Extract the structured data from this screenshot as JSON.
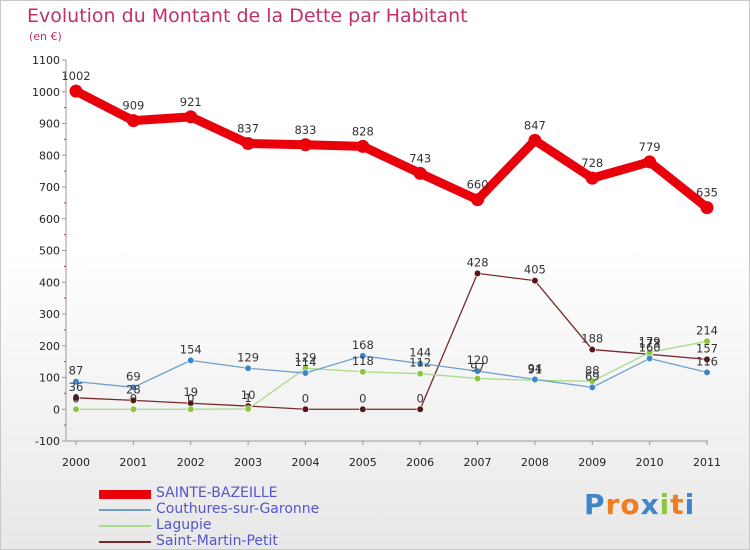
{
  "chart_data": {
    "type": "line",
    "title": "Evolution du Montant de la Dette par Habitant",
    "subtitle": "(en €)",
    "x": [
      "2000",
      "2001",
      "2002",
      "2003",
      "2004",
      "2005",
      "2006",
      "2007",
      "2008",
      "2009",
      "2010",
      "2011"
    ],
    "yticks": [
      "-100",
      "0",
      "100",
      "200",
      "300",
      "400",
      "500",
      "600",
      "700",
      "800",
      "900",
      "1000",
      "1100"
    ],
    "ylim": [
      -100,
      1100
    ],
    "grid": false,
    "legend_position": "bottom-left",
    "series": [
      {
        "name": "SAINTE-BAZEILLE",
        "color": "#e8000b",
        "values": [
          1002,
          909,
          921,
          837,
          833,
          828,
          743,
          660,
          847,
          728,
          779,
          635
        ],
        "labels": [
          "1002",
          "909",
          "921",
          "837",
          "833",
          "828",
          "743",
          "660",
          "847",
          "728",
          "779",
          "635"
        ]
      },
      {
        "name": "Couthures-sur-Garonne",
        "color": "#6fa0cc",
        "values": [
          87,
          69,
          154,
          129,
          114,
          168,
          144,
          120,
          94,
          69,
          160,
          116
        ],
        "labels": [
          "87",
          "69",
          "154",
          "129",
          "114",
          "168",
          "144",
          "120",
          "94",
          "69",
          "160",
          "116"
        ]
      },
      {
        "name": "Lagupie",
        "color": "#a8dc8a",
        "values": [
          0,
          0,
          0,
          1,
          129,
          118,
          112,
          97,
          91,
          88,
          179,
          214
        ],
        "labels": [
          "0",
          "0",
          "0",
          "1",
          "129",
          "118",
          "112",
          "97",
          "91",
          "88",
          "179",
          "214"
        ]
      },
      {
        "name": "Saint-Martin-Petit",
        "color": "#7a2a2a",
        "values": [
          36,
          28,
          19,
          10,
          0,
          0,
          0,
          428,
          405,
          188,
          173,
          157
        ],
        "labels": [
          "36",
          "28",
          "19",
          "10",
          "0",
          "0",
          "0",
          "428",
          "405",
          "188",
          "173",
          "157"
        ]
      }
    ]
  },
  "logo": {
    "text": "Proxiti",
    "letters": [
      "P",
      "r",
      "o",
      "x",
      "i",
      "t",
      "i"
    ],
    "colors": [
      "#3f86c8",
      "#f07d1e",
      "#f07d1e",
      "#3f86c8",
      "#8cc63e",
      "#f07d1e",
      "#3f86c8"
    ]
  }
}
